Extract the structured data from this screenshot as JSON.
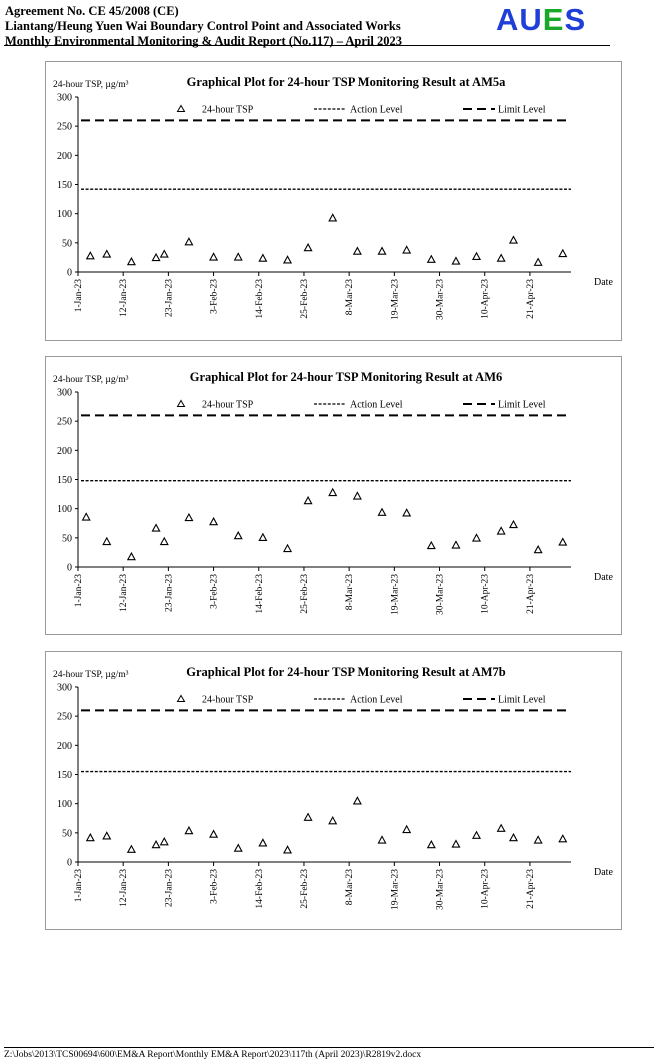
{
  "header": {
    "line1": "Agreement No. CE 45/2008 (CE)",
    "line2": "Liantang/Heung Yuen Wai Boundary Control Point and Associated Works",
    "line3": "Monthly Environmental Monitoring & Audit Report (No.117) – April 2023",
    "logo": {
      "letters": [
        "A",
        "U",
        "E",
        "S"
      ],
      "colors": [
        "#1f3fd8",
        "#1f3fd8",
        "#1aa82a",
        "#1f3fd8"
      ]
    }
  },
  "footer": {
    "path": "Z:\\Jobs\\2013\\TCS00694\\600\\EM&A Report\\Monthly EM&A Report\\2023\\117th (April 2023)\\R2819v2.docx"
  },
  "chart_data": [
    {
      "type": "scatter",
      "title": "Graphical Plot for 24-hour TSP Monitoring Result at AM5a",
      "ylabel": "24-hour TSP, µg/m³",
      "xlabel": "Date",
      "ylim": [
        0,
        300
      ],
      "yticks": [
        0,
        50,
        100,
        150,
        200,
        250,
        300
      ],
      "xlim": [
        "2023-01-01",
        "2023-05-01"
      ],
      "xticks": [
        "1-Jan-23",
        "12-Jan-23",
        "23-Jan-23",
        "3-Feb-23",
        "14-Feb-23",
        "25-Feb-23",
        "8-Mar-23",
        "19-Mar-23",
        "30-Mar-23",
        "10-Apr-23",
        "21-Apr-23"
      ],
      "legend": [
        "24-hour TSP",
        "Action Level",
        "Limit Level"
      ],
      "legend_position": "top",
      "grid": false,
      "action_level": 142,
      "limit_level": 260,
      "series": [
        {
          "name": "24-hour TSP",
          "points": [
            [
              "2023-01-04",
              27
            ],
            [
              "2023-01-08",
              30
            ],
            [
              "2023-01-14",
              17
            ],
            [
              "2023-01-20",
              24
            ],
            [
              "2023-01-22",
              30
            ],
            [
              "2023-01-28",
              51
            ],
            [
              "2023-02-03",
              25
            ],
            [
              "2023-02-09",
              25
            ],
            [
              "2023-02-15",
              23
            ],
            [
              "2023-02-21",
              20
            ],
            [
              "2023-02-26",
              41
            ],
            [
              "2023-03-04",
              92
            ],
            [
              "2023-03-10",
              35
            ],
            [
              "2023-03-16",
              35
            ],
            [
              "2023-03-22",
              37
            ],
            [
              "2023-03-28",
              21
            ],
            [
              "2023-04-03",
              18
            ],
            [
              "2023-04-08",
              26
            ],
            [
              "2023-04-14",
              23
            ],
            [
              "2023-04-17",
              54
            ],
            [
              "2023-04-23",
              16
            ],
            [
              "2023-04-29",
              31
            ]
          ]
        }
      ]
    },
    {
      "type": "scatter",
      "title": "Graphical Plot for 24-hour TSP Monitoring Result at AM6",
      "ylabel": "24-hour TSP, µg/m³",
      "xlabel": "Date",
      "ylim": [
        0,
        300
      ],
      "yticks": [
        0,
        50,
        100,
        150,
        200,
        250,
        300
      ],
      "xlim": [
        "2023-01-01",
        "2023-05-01"
      ],
      "xticks": [
        "1-Jan-23",
        "12-Jan-23",
        "23-Jan-23",
        "3-Feb-23",
        "14-Feb-23",
        "25-Feb-23",
        "8-Mar-23",
        "19-Mar-23",
        "30-Mar-23",
        "10-Apr-23",
        "21-Apr-23"
      ],
      "legend": [
        "24-hour TSP",
        "Action Level",
        "Limit Level"
      ],
      "legend_position": "top",
      "grid": false,
      "action_level": 148,
      "limit_level": 260,
      "series": [
        {
          "name": "24-hour TSP",
          "points": [
            [
              "2023-01-03",
              85
            ],
            [
              "2023-01-08",
              43
            ],
            [
              "2023-01-14",
              17
            ],
            [
              "2023-01-20",
              66
            ],
            [
              "2023-01-22",
              43
            ],
            [
              "2023-01-28",
              84
            ],
            [
              "2023-02-03",
              77
            ],
            [
              "2023-02-09",
              53
            ],
            [
              "2023-02-15",
              50
            ],
            [
              "2023-02-21",
              31
            ],
            [
              "2023-02-26",
              113
            ],
            [
              "2023-03-04",
              127
            ],
            [
              "2023-03-10",
              121
            ],
            [
              "2023-03-16",
              93
            ],
            [
              "2023-03-22",
              92
            ],
            [
              "2023-03-28",
              36
            ],
            [
              "2023-04-03",
              37
            ],
            [
              "2023-04-08",
              49
            ],
            [
              "2023-04-14",
              61
            ],
            [
              "2023-04-17",
              72
            ],
            [
              "2023-04-23",
              29
            ],
            [
              "2023-04-29",
              42
            ]
          ]
        }
      ]
    },
    {
      "type": "scatter",
      "title": "Graphical Plot for 24-hour TSP Monitoring Result at AM7b",
      "ylabel": "24-hour TSP, µg/m³",
      "xlabel": "Date",
      "ylim": [
        0,
        300
      ],
      "yticks": [
        0,
        50,
        100,
        150,
        200,
        250,
        300
      ],
      "xlim": [
        "2023-01-01",
        "2023-05-01"
      ],
      "xticks": [
        "1-Jan-23",
        "12-Jan-23",
        "23-Jan-23",
        "3-Feb-23",
        "14-Feb-23",
        "25-Feb-23",
        "8-Mar-23",
        "19-Mar-23",
        "30-Mar-23",
        "10-Apr-23",
        "21-Apr-23"
      ],
      "legend": [
        "24-hour TSP",
        "Action Level",
        "Limit Level"
      ],
      "legend_position": "top",
      "grid": false,
      "action_level": 155,
      "limit_level": 260,
      "series": [
        {
          "name": "24-hour TSP",
          "points": [
            [
              "2023-01-04",
              41
            ],
            [
              "2023-01-08",
              44
            ],
            [
              "2023-01-14",
              21
            ],
            [
              "2023-01-20",
              29
            ],
            [
              "2023-01-22",
              34
            ],
            [
              "2023-01-28",
              53
            ],
            [
              "2023-02-03",
              47
            ],
            [
              "2023-02-09",
              23
            ],
            [
              "2023-02-15",
              32
            ],
            [
              "2023-02-21",
              20
            ],
            [
              "2023-02-26",
              76
            ],
            [
              "2023-03-04",
              70
            ],
            [
              "2023-03-10",
              104
            ],
            [
              "2023-03-16",
              37
            ],
            [
              "2023-03-22",
              55
            ],
            [
              "2023-03-28",
              29
            ],
            [
              "2023-04-03",
              30
            ],
            [
              "2023-04-08",
              45
            ],
            [
              "2023-04-14",
              57
            ],
            [
              "2023-04-17",
              41
            ],
            [
              "2023-04-23",
              37
            ],
            [
              "2023-04-29",
              39
            ]
          ]
        }
      ]
    }
  ]
}
